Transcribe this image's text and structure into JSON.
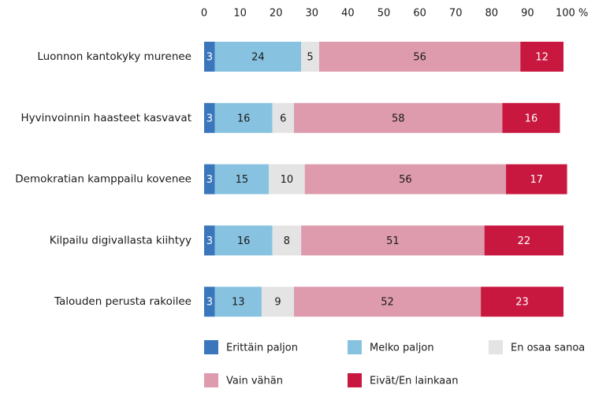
{
  "chart_data": {
    "type": "stacked-bar-horizontal",
    "categories": [
      "Luonnon kantokyky murenee",
      "Hyvinvoinnin haasteet kasvavat",
      "Demokratian kamppailu kovenee",
      "Kilpailu digivallasta kiihtyy",
      "Talouden perusta rakoilee"
    ],
    "series": [
      {
        "name": "Erittäin paljon",
        "color": "#3a76bb",
        "label_color": "#ffffff",
        "values": [
          3,
          3,
          3,
          3,
          3
        ]
      },
      {
        "name": "Melko paljon",
        "color": "#87c3e0",
        "label_color": "#1a1a1a",
        "values": [
          24,
          16,
          15,
          16,
          13
        ]
      },
      {
        "name": "En osaa sanoa",
        "color": "#e4e4e4",
        "label_color": "#1a1a1a",
        "values": [
          5,
          6,
          10,
          8,
          9
        ]
      },
      {
        "name": "Vain vähän",
        "color": "#de9bad",
        "label_color": "#1a1a1a",
        "values": [
          56,
          58,
          56,
          51,
          52
        ]
      },
      {
        "name": "Eivät/En lainkaan",
        "color": "#c8183f",
        "label_color": "#ffffff",
        "values": [
          12,
          16,
          17,
          22,
          23
        ]
      }
    ],
    "xlim": [
      0,
      100
    ],
    "xticks": [
      0,
      10,
      20,
      30,
      40,
      50,
      60,
      70,
      80,
      90,
      {
        "value": 100,
        "label": "100 %"
      }
    ],
    "grid": false,
    "legend": "bottom"
  }
}
